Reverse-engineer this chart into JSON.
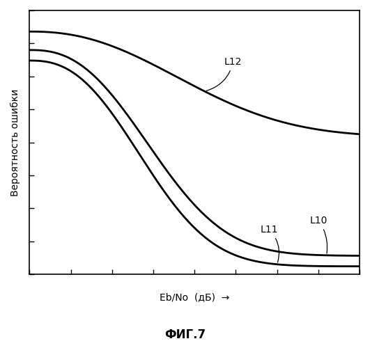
{
  "title": "ФИГ.7",
  "ylabel": "Вероятность ошибки",
  "xlabel": "Eb/No  (дБ)  →",
  "background_color": "#ffffff",
  "border_color": "#000000",
  "lw_L12": 2.0,
  "lw_L10": 2.0,
  "lw_L11": 2.0,
  "annotation_fontsize": 10,
  "ylabel_fontsize": 10,
  "xlabel_fontsize": 10,
  "title_fontsize": 12,
  "font_color": "#000000",
  "x_range": [
    0,
    10
  ],
  "y_range": [
    0,
    1
  ],
  "ytick_count": 8,
  "xtick_count": 8
}
